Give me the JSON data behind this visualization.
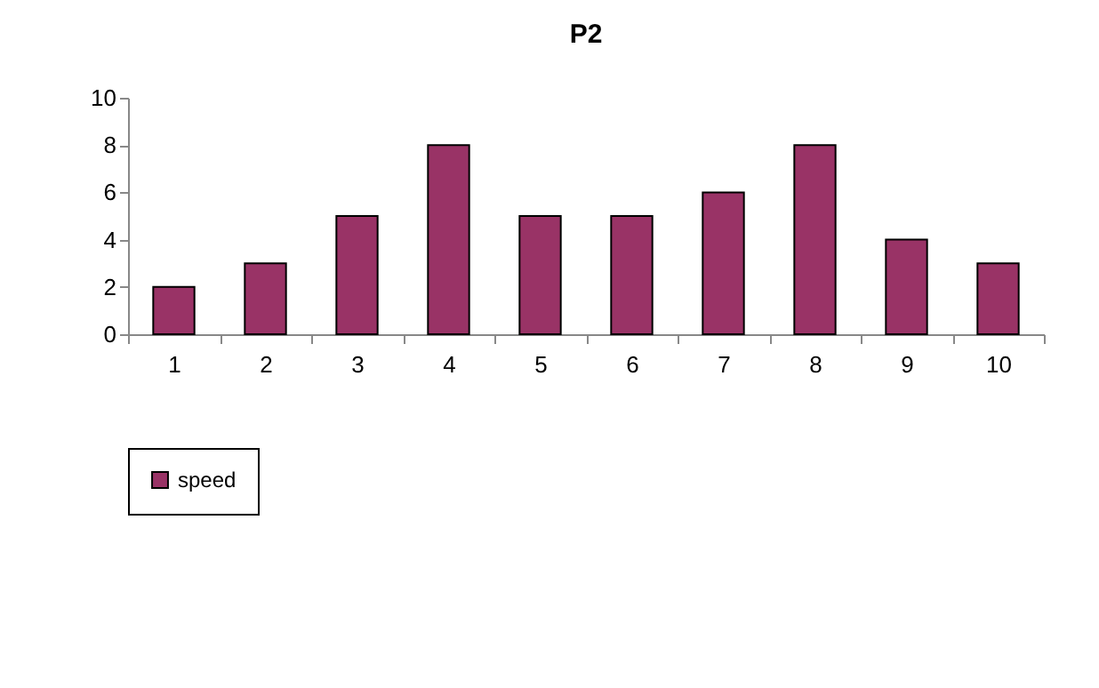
{
  "chart_data": {
    "type": "bar",
    "title": "P2",
    "categories": [
      "1",
      "2",
      "3",
      "4",
      "5",
      "6",
      "7",
      "8",
      "9",
      "10"
    ],
    "series": [
      {
        "name": "speed",
        "color": "#993366",
        "values": [
          2,
          3,
          5,
          8,
          5,
          5,
          6,
          8,
          4,
          3
        ]
      }
    ],
    "ylim": [
      0,
      10
    ],
    "yticks": [
      0,
      2,
      4,
      6,
      8,
      10
    ],
    "grid": false,
    "legend": "bottom"
  }
}
